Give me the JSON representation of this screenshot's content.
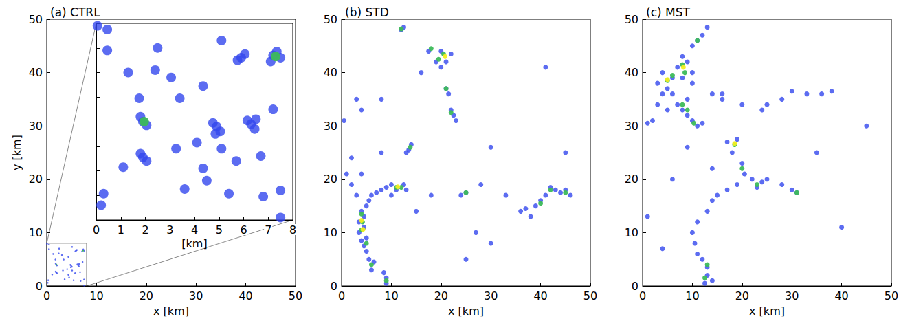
{
  "chart_data": [
    {
      "type": "scatter",
      "title": "(a) CTRL",
      "xlabel": "x [km]",
      "ylabel": "y [km]",
      "xlim": [
        0,
        50
      ],
      "ylim": [
        0,
        50
      ],
      "xticks": [
        0,
        10,
        20,
        30,
        40,
        50
      ],
      "yticks": [
        0,
        10,
        20,
        30,
        40,
        50
      ],
      "grid": false,
      "series": [
        {
          "color": "#3347ee",
          "values": [
            [
              1.9,
              4.0
            ],
            [
              1.8,
              4.2
            ],
            [
              2.05,
              3.85
            ],
            [
              1.75,
              4.95
            ],
            [
              1.9,
              2.55
            ],
            [
              2.05,
              2.4
            ],
            [
              1.8,
              2.7
            ],
            [
              4.9,
              3.8
            ],
            [
              4.75,
              3.95
            ],
            [
              5.05,
              3.6
            ],
            [
              4.85,
              3.5
            ],
            [
              6.3,
              3.9
            ],
            [
              6.45,
              3.7
            ],
            [
              6.15,
              4.05
            ],
            [
              6.5,
              4.1
            ],
            [
              5.9,
              6.6
            ],
            [
              6.05,
              6.75
            ],
            [
              5.75,
              6.5
            ],
            [
              7.2,
              6.7
            ],
            [
              7.35,
              6.85
            ],
            [
              7.5,
              6.6
            ],
            [
              7.1,
              6.45
            ],
            [
              1.3,
              6.0
            ],
            [
              3.05,
              5.8
            ],
            [
              2.4,
              6.1
            ],
            [
              4.35,
              5.45
            ],
            [
              3.4,
              4.95
            ],
            [
              7.2,
              4.5
            ],
            [
              4.1,
              3.15
            ],
            [
              0.2,
              0.6
            ],
            [
              0.3,
              1.07
            ],
            [
              3.6,
              1.26
            ],
            [
              4.5,
              1.6
            ],
            [
              5.4,
              1.07
            ],
            [
              6.8,
              0.95
            ],
            [
              7.5,
              1.2
            ],
            [
              2.5,
              7.0
            ],
            [
              0.45,
              6.9
            ],
            [
              0.05,
              7.9
            ],
            [
              0.45,
              7.75
            ],
            [
              5.1,
              7.3
            ],
            [
              7.5,
              0.1
            ],
            [
              1.1,
              2.15
            ],
            [
              4.35,
              2.1
            ],
            [
              5.7,
              2.4
            ],
            [
              3.25,
              2.9
            ],
            [
              5.1,
              2.9
            ],
            [
              6.7,
              2.6
            ]
          ]
        },
        {
          "color": "#3dbb5a",
          "values": [
            [
              1.95,
              4.0
            ],
            [
              7.3,
              6.65
            ]
          ]
        }
      ],
      "inset": {
        "xlabel": "[km]",
        "xlim": [
          0,
          8
        ],
        "ylim": [
          0,
          8
        ],
        "xticks": [
          0,
          1,
          2,
          3,
          4,
          5,
          6,
          7,
          8
        ],
        "tick_labels": "x"
      }
    },
    {
      "type": "scatter",
      "title": "(b) STD",
      "xlabel": "x [km]",
      "xlim": [
        0,
        50
      ],
      "ylim": [
        0,
        50
      ],
      "xticks": [
        0,
        10,
        20,
        30,
        40,
        50
      ],
      "yticks": [
        0,
        10,
        20,
        30,
        40,
        50
      ],
      "grid": false,
      "series": [
        {
          "color": "#3347ee",
          "values": [
            [
              9,
              0.5
            ],
            [
              9,
              1.5
            ],
            [
              8.5,
              2.5
            ],
            [
              6,
              3
            ],
            [
              6.5,
              4.5
            ],
            [
              5.5,
              5
            ],
            [
              5,
              6.5
            ],
            [
              4.5,
              7.5
            ],
            [
              4,
              8.5
            ],
            [
              5,
              9
            ],
            [
              3.5,
              10
            ],
            [
              4.5,
              11
            ],
            [
              3.5,
              12
            ],
            [
              4.5,
              13
            ],
            [
              4,
              14
            ],
            [
              5,
              15
            ],
            [
              5.5,
              16
            ],
            [
              6,
              17
            ],
            [
              7,
              17.5
            ],
            [
              8,
              18
            ],
            [
              9,
              18.5
            ],
            [
              10,
              19
            ],
            [
              11,
              18
            ],
            [
              12.5,
              19
            ],
            [
              13,
              18
            ],
            [
              10,
              17
            ],
            [
              3,
              17
            ],
            [
              2,
              19
            ],
            [
              1,
              21
            ],
            [
              2,
              24
            ],
            [
              4,
              21
            ],
            [
              13.5,
              25.5
            ],
            [
              14,
              26.5
            ],
            [
              13,
              25
            ],
            [
              12,
              48
            ],
            [
              12.5,
              48.5
            ],
            [
              17.5,
              44
            ],
            [
              19,
              42
            ],
            [
              20,
              44
            ],
            [
              21,
              42
            ],
            [
              22,
              43.5
            ],
            [
              20,
              41
            ],
            [
              21,
              37
            ],
            [
              21.5,
              36
            ],
            [
              22,
              33
            ],
            [
              22.5,
              32
            ],
            [
              23,
              31
            ],
            [
              25,
              17.5
            ],
            [
              24,
              17
            ],
            [
              28,
              19
            ],
            [
              33,
              17
            ],
            [
              36,
              14
            ],
            [
              38,
              13
            ],
            [
              39,
              15
            ],
            [
              40,
              16
            ],
            [
              41,
              17
            ],
            [
              42,
              18.5
            ],
            [
              43,
              18
            ],
            [
              44,
              17.5
            ],
            [
              45,
              18
            ],
            [
              46,
              17
            ],
            [
              37,
              14.5
            ],
            [
              27,
              10
            ],
            [
              30,
              8
            ],
            [
              25,
              5
            ],
            [
              3,
              35
            ],
            [
              4,
              33
            ],
            [
              41,
              41
            ],
            [
              0.5,
              31
            ],
            [
              15,
              14
            ],
            [
              18,
              17
            ],
            [
              45,
              25
            ],
            [
              8,
              25
            ],
            [
              30,
              26
            ],
            [
              16,
              40
            ],
            [
              8,
              35
            ]
          ]
        },
        {
          "color": "#3dbb5a",
          "values": [
            [
              4,
              10.5
            ],
            [
              4.2,
              12
            ],
            [
              4,
              13.5
            ],
            [
              5,
              8
            ],
            [
              6,
              4
            ],
            [
              9,
              1
            ],
            [
              11,
              18.5
            ],
            [
              12,
              18.5
            ],
            [
              20.5,
              43.5
            ],
            [
              19.5,
              42.5
            ],
            [
              18,
              44.5
            ],
            [
              13.8,
              26
            ],
            [
              21,
              37
            ],
            [
              22,
              32.5
            ],
            [
              25,
              17.5
            ],
            [
              40,
              15.5
            ],
            [
              42,
              18
            ],
            [
              45,
              17.5
            ],
            [
              12,
              48.2
            ]
          ]
        },
        {
          "color": "#f2ee22",
          "values": [
            [
              4,
              12.3
            ],
            [
              4.3,
              10.6
            ],
            [
              20.8,
              43
            ],
            [
              11.3,
              18.6
            ]
          ]
        }
      ]
    },
    {
      "type": "scatter",
      "title": "(c) MST",
      "xlabel": "x [km]",
      "xlim": [
        0,
        50
      ],
      "ylim": [
        0,
        50
      ],
      "xticks": [
        0,
        10,
        20,
        30,
        40,
        50
      ],
      "yticks": [
        0,
        10,
        20,
        30,
        40,
        50
      ],
      "grid": false,
      "series": [
        {
          "color": "#3347ee",
          "values": [
            [
              3,
              38
            ],
            [
              4,
              40
            ],
            [
              5,
              37
            ],
            [
              6,
              39
            ],
            [
              7,
              41
            ],
            [
              8,
              43
            ],
            [
              9,
              42
            ],
            [
              10,
              40
            ],
            [
              8,
              39
            ],
            [
              6,
              36
            ],
            [
              4,
              36
            ],
            [
              3,
              34
            ],
            [
              5,
              33
            ],
            [
              7,
              34
            ],
            [
              8,
              33
            ],
            [
              9,
              32
            ],
            [
              10,
              31
            ],
            [
              11,
              30
            ],
            [
              12,
              30.5
            ],
            [
              9,
              35
            ],
            [
              10,
              45
            ],
            [
              11,
              46
            ],
            [
              12,
              47
            ],
            [
              13,
              48.5
            ],
            [
              10,
              38
            ],
            [
              2,
              31
            ],
            [
              1,
              30.5
            ],
            [
              14,
              36
            ],
            [
              16,
              35
            ],
            [
              20,
              34
            ],
            [
              25,
              34
            ],
            [
              28,
              35
            ],
            [
              30,
              36.5
            ],
            [
              33,
              36
            ],
            [
              36,
              36
            ],
            [
              38,
              36.5
            ],
            [
              24,
              33
            ],
            [
              17,
              27
            ],
            [
              18,
              25
            ],
            [
              19,
              27.5
            ],
            [
              20,
              23
            ],
            [
              20.5,
              21
            ],
            [
              22,
              20
            ],
            [
              23,
              18.5
            ],
            [
              24,
              19.5
            ],
            [
              25,
              20
            ],
            [
              19,
              19
            ],
            [
              17,
              18
            ],
            [
              15,
              17
            ],
            [
              14,
              16
            ],
            [
              13,
              14
            ],
            [
              11,
              12
            ],
            [
              10,
              10
            ],
            [
              10.5,
              8
            ],
            [
              11,
              6
            ],
            [
              12,
              5
            ],
            [
              13,
              3.5
            ],
            [
              13,
              2
            ],
            [
              12.5,
              0.5
            ],
            [
              14,
              1
            ],
            [
              31,
              17.5
            ],
            [
              30,
              18
            ],
            [
              28,
              19
            ],
            [
              9,
              26
            ],
            [
              6,
              20
            ],
            [
              35,
              25
            ],
            [
              45,
              30
            ],
            [
              14,
              22
            ],
            [
              1,
              13
            ],
            [
              4,
              7
            ],
            [
              40,
              11
            ],
            [
              16,
              36
            ]
          ]
        },
        {
          "color": "#3dbb5a",
          "values": [
            [
              5,
              38.5
            ],
            [
              8,
              41.5
            ],
            [
              8.5,
              40
            ],
            [
              6,
              39.5
            ],
            [
              9,
              33
            ],
            [
              10.3,
              30.5
            ],
            [
              11,
              46
            ],
            [
              18.5,
              26.5
            ],
            [
              20,
              22
            ],
            [
              23,
              19
            ],
            [
              12.5,
              1.5
            ],
            [
              13,
              4
            ],
            [
              31,
              17.5
            ],
            [
              8,
              34
            ]
          ]
        },
        {
          "color": "#f2ee22",
          "values": [
            [
              5,
              38.7
            ],
            [
              8.2,
              41
            ],
            [
              18.5,
              26.7
            ]
          ]
        }
      ]
    }
  ]
}
